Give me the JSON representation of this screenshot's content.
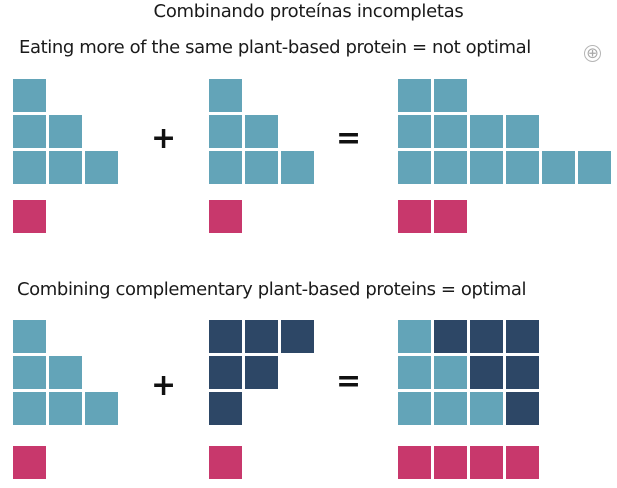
{
  "title": "Combinando proteínas incompletas",
  "zoom_button_icon": "⊕",
  "colors": {
    "protein_a": "#63a4b8",
    "protein_b": "#2d4766",
    "limiting_amino_acid": "#c8386c"
  },
  "sections": [
    {
      "heading": "Eating more of the same plant-based protein = not optimal",
      "plus": "+",
      "equals": "=",
      "left": {
        "rows": [
          [
            "a"
          ],
          [
            "a",
            "a"
          ],
          [
            "a",
            "a",
            "a"
          ]
        ],
        "limiting": 1
      },
      "right": {
        "rows": [
          [
            "a"
          ],
          [
            "a",
            "a"
          ],
          [
            "a",
            "a",
            "a"
          ]
        ],
        "limiting": 1
      },
      "result": {
        "rows": [
          [
            "a",
            "a"
          ],
          [
            "a",
            "a",
            "a",
            "a"
          ],
          [
            "a",
            "a",
            "a",
            "a",
            "a",
            "a"
          ]
        ],
        "limiting": 2
      }
    },
    {
      "heading": "Combining complementary plant-based proteins = optimal",
      "plus": "+",
      "equals": "=",
      "left": {
        "rows": [
          [
            "a"
          ],
          [
            "a",
            "a"
          ],
          [
            "a",
            "a",
            "a"
          ]
        ],
        "limiting": 1
      },
      "right": {
        "rows": [
          [
            "b",
            "b",
            "b"
          ],
          [
            "b",
            "b"
          ],
          [
            "b"
          ]
        ],
        "limiting": 1
      },
      "result": {
        "rows": [
          [
            "a",
            "b",
            "b",
            "b"
          ],
          [
            "a",
            "a",
            "b",
            "b"
          ],
          [
            "a",
            "a",
            "a",
            "b"
          ]
        ],
        "limiting": 4
      }
    }
  ]
}
